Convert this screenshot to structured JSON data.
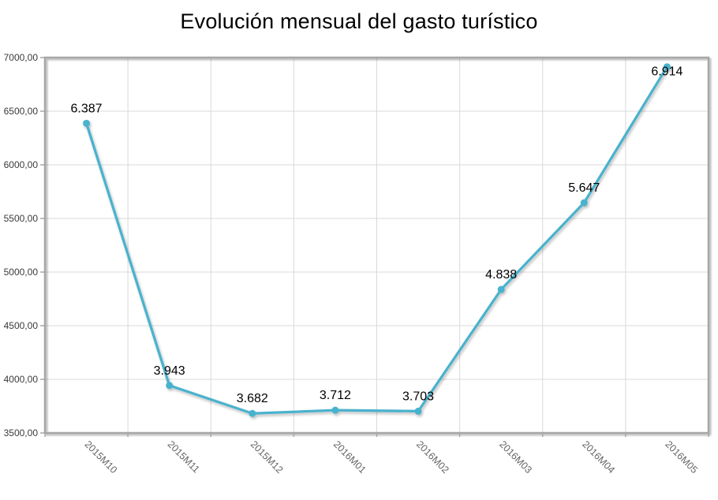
{
  "chart_data": {
    "type": "line",
    "title": "Evolución mensual del gasto turístico",
    "categories": [
      "2015M10",
      "2015M11",
      "2015M12",
      "2016M01",
      "2016M02",
      "2016M03",
      "2016M04",
      "2016M05"
    ],
    "values": [
      6387,
      3943,
      3682,
      3712,
      3703,
      4838,
      5647,
      6914
    ],
    "point_labels": [
      "6.387",
      "3.943",
      "3.682",
      "3.712",
      "3.703",
      "4.838",
      "5.647",
      "6.914"
    ],
    "xlabel": "",
    "ylabel": "",
    "ylim": [
      3500,
      7000
    ],
    "ytick_step": 500,
    "ytick_labels": [
      "3500,00",
      "4000,00",
      "4500,00",
      "5000,00",
      "5500,00",
      "6000,00",
      "6500,00",
      "7000,00"
    ],
    "grid": true,
    "legend": "none",
    "x_label_rotation_deg": 45,
    "colors": {
      "line": "#49b2cd",
      "marker": "#49b2cd",
      "grid": "#d9d9d9",
      "border": "#a6a6a6",
      "y_axis_text": "#3a3a3a",
      "x_axis_text": "#666666",
      "data_label": "#000000",
      "title_text": "#000000",
      "background": "#ffffff"
    }
  }
}
